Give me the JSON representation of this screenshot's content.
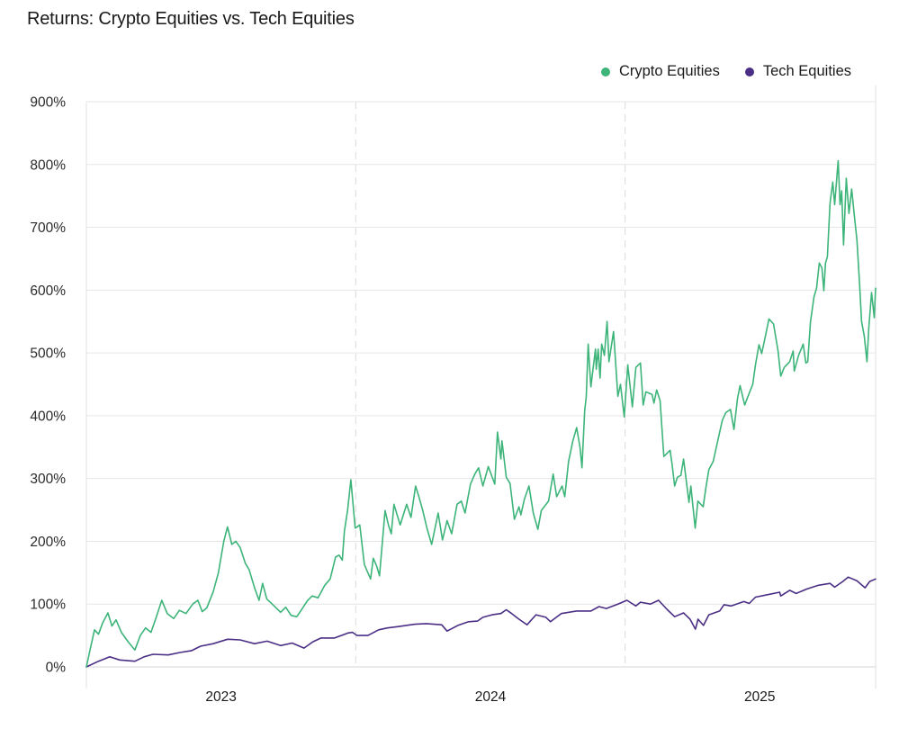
{
  "chart_data": {
    "type": "line",
    "title": "Returns: Crypto Equities vs. Tech Equities",
    "xlabel": "",
    "ylabel": "",
    "x_unit": "year (fractional)",
    "xlim": [
      2023.0,
      2025.93
    ],
    "ylim": [
      0,
      900
    ],
    "y_ticks": [
      0,
      100,
      200,
      300,
      400,
      500,
      600,
      700,
      800,
      900
    ],
    "y_tick_labels": [
      "0%",
      "100%",
      "200%",
      "300%",
      "400%",
      "500%",
      "600%",
      "700%",
      "800%",
      "900%"
    ],
    "x_ticks": [
      2023.5,
      2024.5,
      2025.5
    ],
    "x_tick_labels": [
      "2023",
      "2024",
      "2025"
    ],
    "x_dividers": [
      2024.0,
      2025.0
    ],
    "grid": "horizontal",
    "legend_position": "top-right",
    "series": [
      {
        "name": "Crypto Equities",
        "color": "#3db479",
        "points": [
          [
            2023.0,
            0
          ],
          [
            2023.01,
            20
          ],
          [
            2023.03,
            59
          ],
          [
            2023.045,
            52
          ],
          [
            2023.06,
            70
          ],
          [
            2023.08,
            86
          ],
          [
            2023.095,
            65
          ],
          [
            2023.11,
            75
          ],
          [
            2023.13,
            55
          ],
          [
            2023.155,
            40
          ],
          [
            2023.18,
            27
          ],
          [
            2023.2,
            50
          ],
          [
            2023.22,
            62
          ],
          [
            2023.24,
            55
          ],
          [
            2023.26,
            80
          ],
          [
            2023.28,
            106
          ],
          [
            2023.3,
            85
          ],
          [
            2023.324,
            77
          ],
          [
            2023.345,
            90
          ],
          [
            2023.37,
            85
          ],
          [
            2023.395,
            100
          ],
          [
            2023.414,
            106
          ],
          [
            2023.43,
            88
          ],
          [
            2023.447,
            94
          ],
          [
            2023.471,
            120
          ],
          [
            2023.49,
            150
          ],
          [
            2023.51,
            200
          ],
          [
            2023.524,
            223
          ],
          [
            2023.54,
            195
          ],
          [
            2023.555,
            200
          ],
          [
            2023.571,
            190
          ],
          [
            2023.59,
            165
          ],
          [
            2023.604,
            155
          ],
          [
            2023.625,
            125
          ],
          [
            2023.641,
            106
          ],
          [
            2023.654,
            133
          ],
          [
            2023.67,
            108
          ],
          [
            2023.69,
            100
          ],
          [
            2023.721,
            87
          ],
          [
            2023.74,
            95
          ],
          [
            2023.76,
            82
          ],
          [
            2023.781,
            80
          ],
          [
            2023.8,
            92
          ],
          [
            2023.82,
            105
          ],
          [
            2023.838,
            113
          ],
          [
            2023.86,
            110
          ],
          [
            2023.885,
            130
          ],
          [
            2023.905,
            140
          ],
          [
            2023.925,
            175
          ],
          [
            2023.938,
            178
          ],
          [
            2023.95,
            170
          ],
          [
            2023.958,
            216
          ],
          [
            2023.97,
            250
          ],
          [
            2023.982,
            298
          ],
          [
            2023.998,
            221
          ],
          [
            2024.015,
            226
          ],
          [
            2024.032,
            163
          ],
          [
            2024.055,
            140
          ],
          [
            2024.065,
            173
          ],
          [
            2024.078,
            160
          ],
          [
            2024.088,
            145
          ],
          [
            2024.109,
            249
          ],
          [
            2024.122,
            225
          ],
          [
            2024.132,
            212
          ],
          [
            2024.142,
            259
          ],
          [
            2024.155,
            240
          ],
          [
            2024.165,
            226
          ],
          [
            2024.189,
            259
          ],
          [
            2024.205,
            238
          ],
          [
            2024.222,
            288
          ],
          [
            2024.235,
            270
          ],
          [
            2024.249,
            249
          ],
          [
            2024.265,
            220
          ],
          [
            2024.282,
            195
          ],
          [
            2024.306,
            245
          ],
          [
            2024.322,
            202
          ],
          [
            2024.339,
            233
          ],
          [
            2024.356,
            212
          ],
          [
            2024.376,
            259
          ],
          [
            2024.392,
            264
          ],
          [
            2024.406,
            245
          ],
          [
            2024.426,
            291
          ],
          [
            2024.442,
            307
          ],
          [
            2024.456,
            317
          ],
          [
            2024.472,
            288
          ],
          [
            2024.492,
            319
          ],
          [
            2024.516,
            291
          ],
          [
            2024.526,
            374
          ],
          [
            2024.539,
            331
          ],
          [
            2024.543,
            360
          ],
          [
            2024.559,
            302
          ],
          [
            2024.573,
            292
          ],
          [
            2024.589,
            235
          ],
          [
            2024.606,
            255
          ],
          [
            2024.613,
            242
          ],
          [
            2024.626,
            267
          ],
          [
            2024.643,
            288
          ],
          [
            2024.659,
            245
          ],
          [
            2024.676,
            219
          ],
          [
            2024.689,
            249
          ],
          [
            2024.716,
            264
          ],
          [
            2024.733,
            307
          ],
          [
            2024.746,
            271
          ],
          [
            2024.766,
            288
          ],
          [
            2024.776,
            271
          ],
          [
            2024.79,
            327
          ],
          [
            2024.806,
            360
          ],
          [
            2024.82,
            381
          ],
          [
            2024.833,
            349
          ],
          [
            2024.84,
            317
          ],
          [
            2024.85,
            407
          ],
          [
            2024.856,
            431
          ],
          [
            2024.863,
            514
          ],
          [
            2024.873,
            446
          ],
          [
            2024.89,
            506
          ],
          [
            2024.893,
            474
          ],
          [
            2024.9,
            506
          ],
          [
            2024.907,
            460
          ],
          [
            2024.913,
            514
          ],
          [
            2024.923,
            496
          ],
          [
            2024.933,
            550
          ],
          [
            2024.94,
            486
          ],
          [
            2024.957,
            534
          ],
          [
            2024.973,
            431
          ],
          [
            2024.983,
            450
          ],
          [
            2024.997,
            398
          ],
          [
            2025.01,
            481
          ],
          [
            2025.027,
            414
          ],
          [
            2025.04,
            477
          ],
          [
            2025.057,
            484
          ],
          [
            2025.067,
            417
          ],
          [
            2025.077,
            438
          ],
          [
            2025.1,
            434
          ],
          [
            2025.107,
            420
          ],
          [
            2025.117,
            441
          ],
          [
            2025.13,
            424
          ],
          [
            2025.144,
            335
          ],
          [
            2025.167,
            345
          ],
          [
            2025.174,
            324
          ],
          [
            2025.184,
            288
          ],
          [
            2025.194,
            302
          ],
          [
            2025.207,
            305
          ],
          [
            2025.217,
            331
          ],
          [
            2025.237,
            262
          ],
          [
            2025.244,
            288
          ],
          [
            2025.26,
            221
          ],
          [
            2025.27,
            264
          ],
          [
            2025.29,
            255
          ],
          [
            2025.301,
            288
          ],
          [
            2025.311,
            314
          ],
          [
            2025.327,
            327
          ],
          [
            2025.344,
            360
          ],
          [
            2025.361,
            393
          ],
          [
            2025.374,
            405
          ],
          [
            2025.391,
            410
          ],
          [
            2025.404,
            378
          ],
          [
            2025.417,
            427
          ],
          [
            2025.427,
            448
          ],
          [
            2025.444,
            417
          ],
          [
            2025.461,
            436
          ],
          [
            2025.474,
            450
          ],
          [
            2025.484,
            481
          ],
          [
            2025.497,
            513
          ],
          [
            2025.507,
            499
          ],
          [
            2025.518,
            521
          ],
          [
            2025.534,
            554
          ],
          [
            2025.551,
            546
          ],
          [
            2025.568,
            503
          ],
          [
            2025.578,
            463
          ],
          [
            2025.591,
            477
          ],
          [
            2025.611,
            486
          ],
          [
            2025.624,
            503
          ],
          [
            2025.628,
            471
          ],
          [
            2025.644,
            496
          ],
          [
            2025.661,
            514
          ],
          [
            2025.671,
            484
          ],
          [
            2025.678,
            486
          ],
          [
            2025.688,
            549
          ],
          [
            2025.701,
            589
          ],
          [
            2025.711,
            603
          ],
          [
            2025.721,
            643
          ],
          [
            2025.731,
            635
          ],
          [
            2025.738,
            599
          ],
          [
            2025.744,
            643
          ],
          [
            2025.751,
            653
          ],
          [
            2025.761,
            739
          ],
          [
            2025.771,
            772
          ],
          [
            2025.778,
            736
          ],
          [
            2025.791,
            806
          ],
          [
            2025.798,
            736
          ],
          [
            2025.804,
            758
          ],
          [
            2025.811,
            672
          ],
          [
            2025.821,
            778
          ],
          [
            2025.831,
            722
          ],
          [
            2025.841,
            761
          ],
          [
            2025.851,
            718
          ],
          [
            2025.861,
            679
          ],
          [
            2025.871,
            607
          ],
          [
            2025.878,
            550
          ],
          [
            2025.888,
            527
          ],
          [
            2025.898,
            486
          ],
          [
            2025.905,
            541
          ],
          [
            2025.915,
            596
          ],
          [
            2025.925,
            556
          ],
          [
            2025.93,
            603
          ]
        ]
      },
      {
        "name": "Tech Equities",
        "color": "#4a2f85",
        "points": [
          [
            2023.0,
            0
          ],
          [
            2023.045,
            9
          ],
          [
            2023.087,
            16
          ],
          [
            2023.124,
            11
          ],
          [
            2023.18,
            9
          ],
          [
            2023.214,
            16
          ],
          [
            2023.247,
            20
          ],
          [
            2023.304,
            19
          ],
          [
            2023.347,
            23
          ],
          [
            2023.391,
            26
          ],
          [
            2023.424,
            33
          ],
          [
            2023.471,
            37
          ],
          [
            2023.524,
            44
          ],
          [
            2023.571,
            43
          ],
          [
            2023.624,
            37
          ],
          [
            2023.671,
            41
          ],
          [
            2023.721,
            34
          ],
          [
            2023.764,
            38
          ],
          [
            2023.808,
            30
          ],
          [
            2023.841,
            40
          ],
          [
            2023.871,
            46
          ],
          [
            2023.921,
            46
          ],
          [
            2023.972,
            54
          ],
          [
            2023.988,
            55
          ],
          [
            2024.005,
            50
          ],
          [
            2024.045,
            50
          ],
          [
            2024.085,
            59
          ],
          [
            2024.118,
            62
          ],
          [
            2024.155,
            64
          ],
          [
            2024.219,
            68
          ],
          [
            2024.262,
            69
          ],
          [
            2024.319,
            67
          ],
          [
            2024.339,
            57
          ],
          [
            2024.379,
            66
          ],
          [
            2024.419,
            72
          ],
          [
            2024.452,
            73
          ],
          [
            2024.472,
            79
          ],
          [
            2024.506,
            83
          ],
          [
            2024.539,
            85
          ],
          [
            2024.559,
            91
          ],
          [
            2024.579,
            85
          ],
          [
            2024.606,
            76
          ],
          [
            2024.636,
            67
          ],
          [
            2024.669,
            83
          ],
          [
            2024.706,
            79
          ],
          [
            2024.723,
            72
          ],
          [
            2024.763,
            85
          ],
          [
            2024.82,
            89
          ],
          [
            2024.873,
            89
          ],
          [
            2024.903,
            96
          ],
          [
            2024.93,
            93
          ],
          [
            2024.973,
            100
          ],
          [
            2025.007,
            106
          ],
          [
            2025.04,
            97
          ],
          [
            2025.057,
            103
          ],
          [
            2025.094,
            100
          ],
          [
            2025.124,
            106
          ],
          [
            2025.157,
            91
          ],
          [
            2025.184,
            80
          ],
          [
            2025.217,
            86
          ],
          [
            2025.241,
            76
          ],
          [
            2025.261,
            60
          ],
          [
            2025.271,
            76
          ],
          [
            2025.291,
            66
          ],
          [
            2025.311,
            83
          ],
          [
            2025.351,
            89
          ],
          [
            2025.367,
            99
          ],
          [
            2025.394,
            97
          ],
          [
            2025.441,
            104
          ],
          [
            2025.461,
            101
          ],
          [
            2025.484,
            111
          ],
          [
            2025.528,
            115
          ],
          [
            2025.574,
            119
          ],
          [
            2025.578,
            113
          ],
          [
            2025.611,
            122
          ],
          [
            2025.635,
            117
          ],
          [
            2025.674,
            124
          ],
          [
            2025.718,
            130
          ],
          [
            2025.761,
            133
          ],
          [
            2025.778,
            127
          ],
          [
            2025.808,
            136
          ],
          [
            2025.828,
            143
          ],
          [
            2025.861,
            137
          ],
          [
            2025.891,
            126
          ],
          [
            2025.908,
            136
          ],
          [
            2025.93,
            140
          ]
        ]
      }
    ]
  }
}
